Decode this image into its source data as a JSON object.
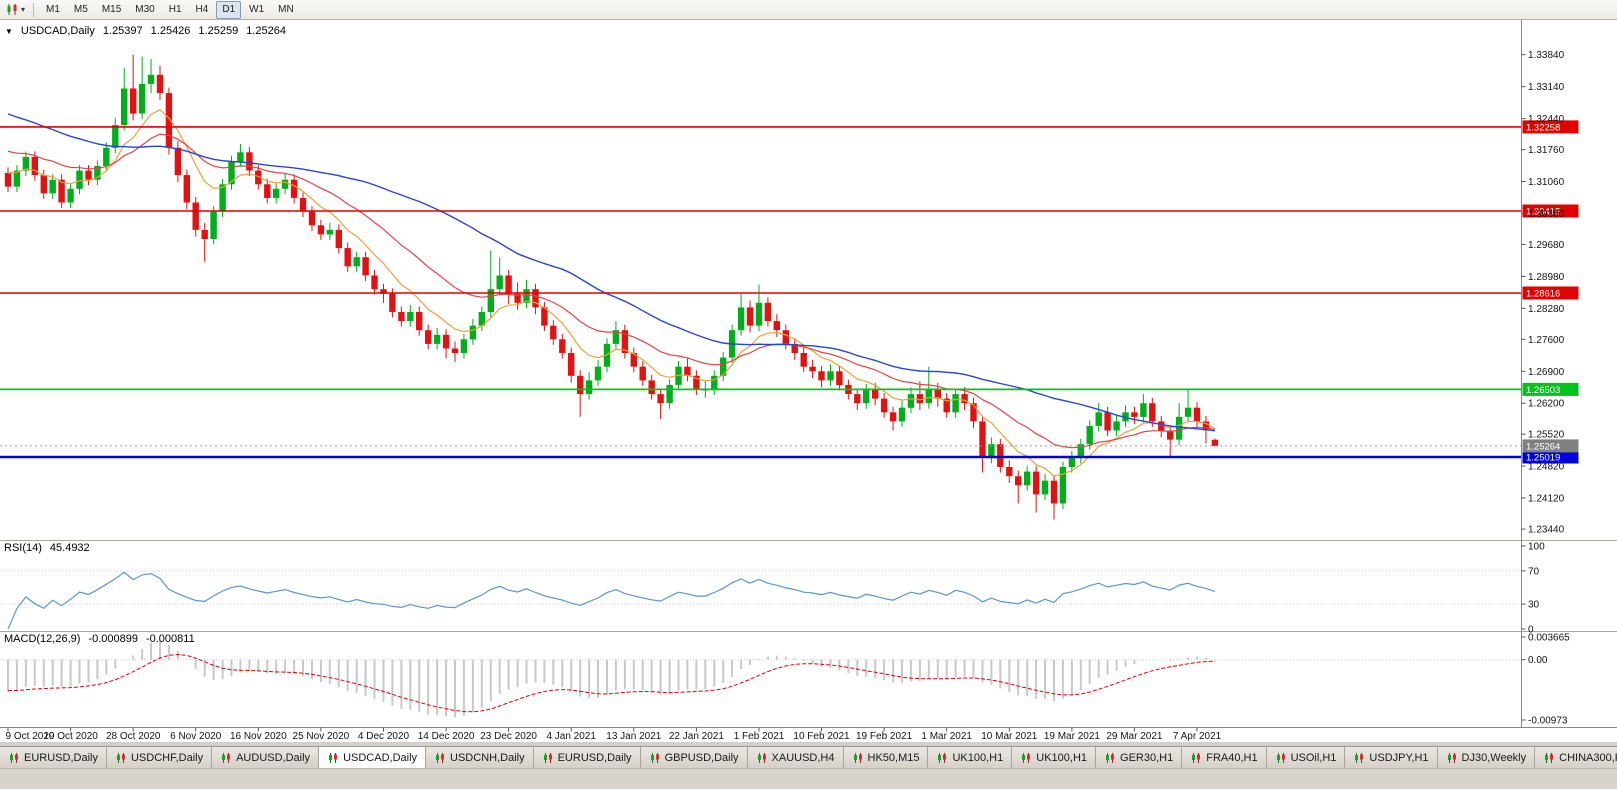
{
  "toolbar": {
    "timeframes": [
      {
        "label": "M1",
        "active": false
      },
      {
        "label": "M5",
        "active": false
      },
      {
        "label": "M15",
        "active": false
      },
      {
        "label": "M30",
        "active": false
      },
      {
        "label": "H1",
        "active": false
      },
      {
        "label": "H4",
        "active": false
      },
      {
        "label": "D1",
        "active": true
      },
      {
        "label": "W1",
        "active": false
      },
      {
        "label": "MN",
        "active": false
      }
    ],
    "chart_type_caret": "▾"
  },
  "chart": {
    "header": {
      "arrow": "▼",
      "symbol": "USDCAD,Daily",
      "open": "1.25397",
      "high": "1.25426",
      "low": "1.25259",
      "close": "1.25264"
    },
    "price_axis_labels": [
      "1.33840",
      "1.33140",
      "1.32440",
      "1.31760",
      "1.31060",
      "1.30360",
      "1.29680",
      "1.28980",
      "1.28280",
      "1.27600",
      "1.26900",
      "1.26200",
      "1.25520",
      "1.24820",
      "1.24120",
      "1.23440"
    ],
    "hlines": [
      {
        "name": "resistance-line-1",
        "price": 1.32258,
        "label": "1.32258",
        "color": "#E00000",
        "width": 1.6
      },
      {
        "name": "resistance-line-2",
        "price": 1.30415,
        "label": "1.30415",
        "color": "#E00000",
        "width": 1.6
      },
      {
        "name": "resistance-line-3",
        "price": 1.28616,
        "label": "1.28616",
        "color": "#E00000",
        "width": 1.6
      },
      {
        "name": "support-line-green",
        "price": 1.26503,
        "label": "1.26503",
        "color": "#00C21E",
        "width": 1.8
      },
      {
        "name": "support-line-blue",
        "price": 1.25019,
        "label": "1.25019",
        "color": "#0000DC",
        "width": 2.6
      }
    ],
    "current_price": {
      "label": "1.25264",
      "price": 1.25264,
      "color": "#808080"
    }
  },
  "rsi": {
    "name": "RSI(14)",
    "value": "45.4932",
    "levels": [
      {
        "label": "100",
        "v": 100,
        "dotted": false
      },
      {
        "label": "70",
        "v": 70,
        "dotted": true
      },
      {
        "label": "30",
        "v": 30,
        "dotted": true
      },
      {
        "label": "0",
        "v": 0,
        "dotted": false
      }
    ]
  },
  "macd": {
    "name": "MACD(12,26,9)",
    "value": "-0.000899",
    "signal_value": "-0.000811",
    "ylim": [
      -0.00973,
      0.003665
    ],
    "axis_labels": [
      {
        "label": "0.003665",
        "v": 0.003665
      },
      {
        "label": "0.00",
        "v": 0
      },
      {
        "label": "-0.00973",
        "v": -0.00973
      }
    ]
  },
  "bottom_tabs": [
    {
      "label": "EURUSD,Daily",
      "active": false
    },
    {
      "label": "USDCHF,Daily",
      "active": false
    },
    {
      "label": "AUDUSD,Daily",
      "active": false
    },
    {
      "label": "USDCAD,Daily",
      "active": true
    },
    {
      "label": "USDCNH,Daily",
      "active": false
    },
    {
      "label": "EURUSD,Daily",
      "active": false
    },
    {
      "label": "GBPUSD,Daily",
      "active": false
    },
    {
      "label": "XAUUSD,H4",
      "active": false
    },
    {
      "label": "HK50,M15",
      "active": false
    },
    {
      "label": "UK100,H1",
      "active": false
    },
    {
      "label": "UK100,H1",
      "active": false
    },
    {
      "label": "GER30,H1",
      "active": false
    },
    {
      "label": "FRA40,H1",
      "active": false
    },
    {
      "label": "USOil,H1",
      "active": false
    },
    {
      "label": "USDJPY,H1",
      "active": false
    },
    {
      "label": "DJ30,Weekly",
      "active": false
    },
    {
      "label": "CHINA300,H1",
      "active": false
    }
  ],
  "colors": {
    "candle_up": "#00AE1C",
    "candle_down": "#E01212",
    "rsi_line": "#5A96D2",
    "macd_hist": "#C8C8C8",
    "macd_signal": "#E00000",
    "grid_dotted": "#C9C9C9",
    "axis_line": "#888888",
    "separator": "#ACA899"
  },
  "chart_data": {
    "type": "candlestick",
    "symbol": "USDCAD",
    "timeframe": "Daily",
    "ylim": [
      1.232,
      1.3458
    ],
    "x_tick_every": 7,
    "x_tick_labels": [
      "9 Oct 2020",
      "19 Oct 2020",
      "28 Oct 2020",
      "6 Nov 2020",
      "16 Nov 2020",
      "25 Nov 2020",
      "4 Dec 2020",
      "14 Dec 2020",
      "23 Dec 2020",
      "4 Jan 2021",
      "13 Jan 2021",
      "22 Jan 2021",
      "1 Feb 2021",
      "10 Feb 2021",
      "19 Feb 2021",
      "1 Mar 2021",
      "10 Mar 2021",
      "19 Mar 2021",
      "29 Mar 2021",
      "7 Apr 2021"
    ],
    "overlays": [
      {
        "name": "ma-slow",
        "type": "sma",
        "period": 40,
        "color": "#2946CE"
      },
      {
        "name": "ma-mid",
        "type": "ema",
        "period": 20,
        "color": "#E04545"
      },
      {
        "name": "ma-fast",
        "type": "ema",
        "period": 8,
        "color": "#E8A23C"
      }
    ],
    "indicators": [
      {
        "name": "RSI",
        "params": "14",
        "current": "45.4932"
      },
      {
        "name": "MACD",
        "params": "12,26,9",
        "current": [
          "-0.000899",
          "-0.000811"
        ]
      }
    ],
    "ohlc": [
      [
        1.3125,
        1.3137,
        1.3083,
        1.3095
      ],
      [
        1.3095,
        1.3142,
        1.3083,
        1.313
      ],
      [
        1.313,
        1.3172,
        1.3118,
        1.316
      ],
      [
        1.316,
        1.3172,
        1.3108,
        1.312
      ],
      [
        1.312,
        1.3132,
        1.3068,
        1.308
      ],
      [
        1.308,
        1.3122,
        1.3068,
        1.311
      ],
      [
        1.311,
        1.3122,
        1.3048,
        1.306
      ],
      [
        1.306,
        1.3102,
        1.3048,
        1.309
      ],
      [
        1.309,
        1.3142,
        1.3078,
        1.313
      ],
      [
        1.313,
        1.3142,
        1.3098,
        1.311
      ],
      [
        1.311,
        1.3152,
        1.3098,
        1.314
      ],
      [
        1.314,
        1.3192,
        1.3128,
        1.318
      ],
      [
        1.318,
        1.3245,
        1.3168,
        1.323
      ],
      [
        1.323,
        1.3355,
        1.3218,
        1.331
      ],
      [
        1.331,
        1.3384,
        1.324,
        1.3255
      ],
      [
        1.3255,
        1.338,
        1.3243,
        1.332
      ],
      [
        1.332,
        1.3375,
        1.33,
        1.334
      ],
      [
        1.334,
        1.336,
        1.3285,
        1.33
      ],
      [
        1.33,
        1.3312,
        1.3165,
        1.318
      ],
      [
        1.318,
        1.3195,
        1.3105,
        1.312
      ],
      [
        1.312,
        1.3132,
        1.3045,
        1.306
      ],
      [
        1.306,
        1.3072,
        1.2985,
        1.3
      ],
      [
        1.3,
        1.3015,
        1.293,
        1.298
      ],
      [
        1.298,
        1.3052,
        1.2968,
        1.304
      ],
      [
        1.304,
        1.3112,
        1.3028,
        1.31
      ],
      [
        1.31,
        1.3162,
        1.3088,
        1.315
      ],
      [
        1.315,
        1.3188,
        1.3138,
        1.317
      ],
      [
        1.317,
        1.3182,
        1.3118,
        1.313
      ],
      [
        1.313,
        1.3142,
        1.3088,
        1.31
      ],
      [
        1.31,
        1.3112,
        1.3058,
        1.307
      ],
      [
        1.307,
        1.3102,
        1.3058,
        1.309
      ],
      [
        1.309,
        1.3125,
        1.3078,
        1.311
      ],
      [
        1.311,
        1.3122,
        1.3058,
        1.307
      ],
      [
        1.307,
        1.3082,
        1.3028,
        1.304
      ],
      [
        1.304,
        1.3052,
        1.2998,
        1.301
      ],
      [
        1.301,
        1.3022,
        1.2978,
        1.299
      ],
      [
        1.299,
        1.3015,
        1.2978,
        1.3
      ],
      [
        1.3,
        1.3012,
        1.2948,
        1.296
      ],
      [
        1.296,
        1.2972,
        1.2908,
        1.292
      ],
      [
        1.292,
        1.2952,
        1.2908,
        1.294
      ],
      [
        1.294,
        1.2952,
        1.2888,
        1.29
      ],
      [
        1.29,
        1.2912,
        1.2858,
        1.287
      ],
      [
        1.287,
        1.2882,
        1.284,
        1.286
      ],
      [
        1.286,
        1.2872,
        1.2808,
        1.282
      ],
      [
        1.282,
        1.2832,
        1.2788,
        1.28
      ],
      [
        1.28,
        1.2835,
        1.2788,
        1.282
      ],
      [
        1.282,
        1.2832,
        1.2768,
        1.278
      ],
      [
        1.278,
        1.2792,
        1.2738,
        1.275
      ],
      [
        1.275,
        1.2785,
        1.2738,
        1.277
      ],
      [
        1.277,
        1.2782,
        1.2718,
        1.274
      ],
      [
        1.274,
        1.2755,
        1.271,
        1.273
      ],
      [
        1.273,
        1.2772,
        1.2718,
        1.276
      ],
      [
        1.276,
        1.2805,
        1.2748,
        1.279
      ],
      [
        1.279,
        1.2832,
        1.2778,
        1.282
      ],
      [
        1.282,
        1.2955,
        1.2808,
        1.287
      ],
      [
        1.287,
        1.294,
        1.2858,
        1.29
      ],
      [
        1.29,
        1.2912,
        1.2838,
        1.286
      ],
      [
        1.286,
        1.2885,
        1.2825,
        1.284
      ],
      [
        1.284,
        1.289,
        1.2828,
        1.287
      ],
      [
        1.287,
        1.2882,
        1.2815,
        1.283
      ],
      [
        1.283,
        1.2842,
        1.2778,
        1.279
      ],
      [
        1.279,
        1.2802,
        1.2748,
        1.276
      ],
      [
        1.276,
        1.2772,
        1.2718,
        1.273
      ],
      [
        1.273,
        1.2742,
        1.2665,
        1.268
      ],
      [
        1.268,
        1.2692,
        1.259,
        1.264
      ],
      [
        1.264,
        1.2688,
        1.2628,
        1.267
      ],
      [
        1.267,
        1.2715,
        1.2658,
        1.27
      ],
      [
        1.27,
        1.2762,
        1.2688,
        1.275
      ],
      [
        1.275,
        1.28,
        1.2738,
        1.278
      ],
      [
        1.278,
        1.2792,
        1.2718,
        1.273
      ],
      [
        1.273,
        1.2742,
        1.2688,
        1.27
      ],
      [
        1.27,
        1.2712,
        1.2658,
        1.267
      ],
      [
        1.267,
        1.2682,
        1.2628,
        1.264
      ],
      [
        1.264,
        1.2652,
        1.2585,
        1.262
      ],
      [
        1.262,
        1.2672,
        1.2608,
        1.266
      ],
      [
        1.266,
        1.2712,
        1.2648,
        1.27
      ],
      [
        1.27,
        1.2718,
        1.2668,
        1.268
      ],
      [
        1.268,
        1.2692,
        1.2638,
        1.265
      ],
      [
        1.265,
        1.2668,
        1.2632,
        1.265
      ],
      [
        1.265,
        1.2692,
        1.2638,
        1.268
      ],
      [
        1.268,
        1.2732,
        1.2668,
        1.272
      ],
      [
        1.272,
        1.2792,
        1.2708,
        1.278
      ],
      [
        1.278,
        1.286,
        1.2768,
        1.283
      ],
      [
        1.283,
        1.2845,
        1.2775,
        1.279
      ],
      [
        1.279,
        1.288,
        1.2778,
        1.284
      ],
      [
        1.284,
        1.2852,
        1.2788,
        1.28
      ],
      [
        1.28,
        1.2815,
        1.2765,
        1.278
      ],
      [
        1.278,
        1.2792,
        1.2738,
        1.275
      ],
      [
        1.275,
        1.2762,
        1.2715,
        1.273
      ],
      [
        1.273,
        1.2742,
        1.2688,
        1.27
      ],
      [
        1.27,
        1.2715,
        1.2675,
        1.269
      ],
      [
        1.269,
        1.2702,
        1.2655,
        1.267
      ],
      [
        1.267,
        1.2705,
        1.2658,
        1.269
      ],
      [
        1.269,
        1.2702,
        1.2648,
        1.266
      ],
      [
        1.266,
        1.2672,
        1.2628,
        1.264
      ],
      [
        1.264,
        1.2652,
        1.2605,
        1.262
      ],
      [
        1.262,
        1.2662,
        1.2608,
        1.265
      ],
      [
        1.265,
        1.2665,
        1.2615,
        1.263
      ],
      [
        1.263,
        1.2642,
        1.2588,
        1.26
      ],
      [
        1.26,
        1.2612,
        1.256,
        1.258
      ],
      [
        1.258,
        1.2625,
        1.2568,
        1.261
      ],
      [
        1.261,
        1.2655,
        1.2598,
        1.264
      ],
      [
        1.264,
        1.2668,
        1.2605,
        1.262
      ],
      [
        1.262,
        1.27,
        1.2608,
        1.265
      ],
      [
        1.265,
        1.2665,
        1.2612,
        1.263
      ],
      [
        1.263,
        1.2642,
        1.2588,
        1.26
      ],
      [
        1.26,
        1.2652,
        1.2588,
        1.264
      ],
      [
        1.264,
        1.2655,
        1.2605,
        1.262
      ],
      [
        1.262,
        1.2632,
        1.2565,
        1.258
      ],
      [
        1.258,
        1.2592,
        1.2468,
        1.25
      ],
      [
        1.25,
        1.2545,
        1.2488,
        1.253
      ],
      [
        1.253,
        1.2542,
        1.2468,
        1.248
      ],
      [
        1.248,
        1.2495,
        1.2445,
        1.246
      ],
      [
        1.246,
        1.2472,
        1.24,
        1.244
      ],
      [
        1.244,
        1.2482,
        1.2428,
        1.247
      ],
      [
        1.247,
        1.2482,
        1.238,
        1.242
      ],
      [
        1.242,
        1.2465,
        1.2408,
        1.245
      ],
      [
        1.245,
        1.2462,
        1.2365,
        1.24
      ],
      [
        1.24,
        1.2492,
        1.2388,
        1.248
      ],
      [
        1.248,
        1.2515,
        1.2468,
        1.25
      ],
      [
        1.25,
        1.2542,
        1.2488,
        1.253
      ],
      [
        1.253,
        1.2582,
        1.2518,
        1.257
      ],
      [
        1.257,
        1.262,
        1.2558,
        1.26
      ],
      [
        1.26,
        1.2612,
        1.2548,
        1.256
      ],
      [
        1.256,
        1.2595,
        1.2548,
        1.258
      ],
      [
        1.258,
        1.2615,
        1.2568,
        1.26
      ],
      [
        1.26,
        1.2612,
        1.2575,
        1.259
      ],
      [
        1.259,
        1.264,
        1.2578,
        1.262
      ],
      [
        1.262,
        1.2632,
        1.2568,
        1.258
      ],
      [
        1.258,
        1.2592,
        1.2545,
        1.256
      ],
      [
        1.256,
        1.2572,
        1.25,
        1.254
      ],
      [
        1.254,
        1.262,
        1.2528,
        1.259
      ],
      [
        1.259,
        1.265,
        1.2578,
        1.261
      ],
      [
        1.261,
        1.2622,
        1.2565,
        1.258
      ],
      [
        1.258,
        1.2592,
        1.2532,
        1.256
      ],
      [
        1.25397,
        1.25426,
        1.25259,
        1.25264
      ]
    ]
  }
}
